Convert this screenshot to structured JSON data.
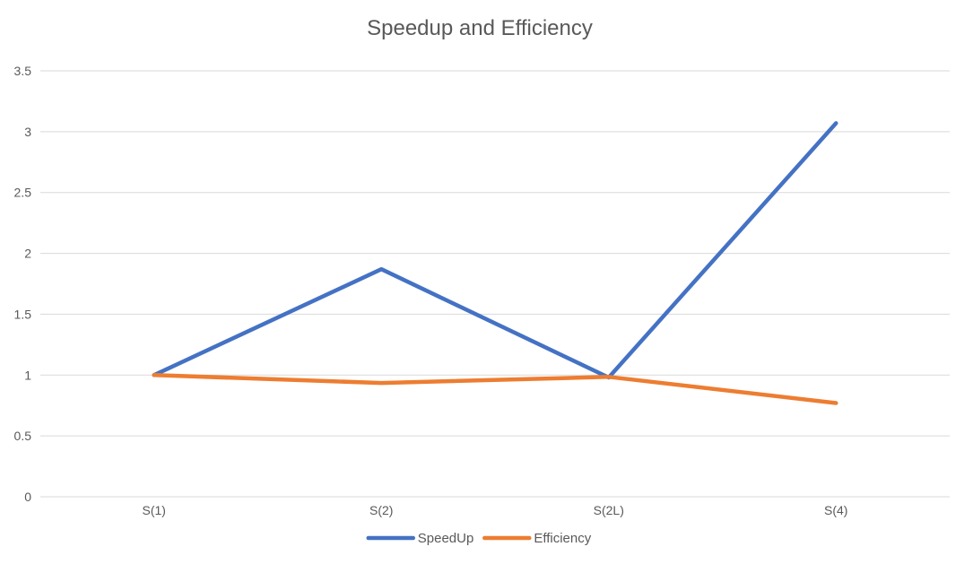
{
  "chart_data": {
    "type": "line",
    "title": "Speedup and Efficiency",
    "xlabel": "",
    "ylabel": "",
    "categories": [
      "S(1)",
      "S(2)",
      "S(2L)",
      "S(4)"
    ],
    "ylim": [
      0,
      3.5
    ],
    "yticks": [
      "0",
      "0.5",
      "1",
      "1.5",
      "2",
      "2.5",
      "3",
      "3.5"
    ],
    "grid": true,
    "legend_position": "bottom",
    "series": [
      {
        "name": "SpeedUp",
        "values": [
          1.0,
          1.87,
          0.98,
          3.07
        ],
        "color": "#4472c4"
      },
      {
        "name": "Efficiency",
        "values": [
          1.0,
          0.935,
          0.985,
          0.77
        ],
        "color": "#ed7d31"
      }
    ]
  }
}
